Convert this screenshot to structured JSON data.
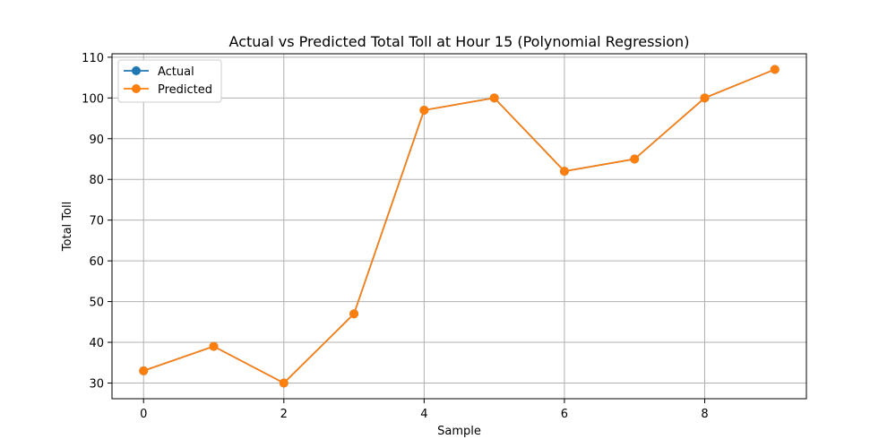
{
  "chart_data": {
    "type": "line",
    "title": "Actual vs Predicted Total Toll at Hour 15 (Polynomial Regression)",
    "xlabel": "Sample",
    "ylabel": "Total Toll",
    "x": [
      0,
      1,
      2,
      3,
      4,
      5,
      6,
      7,
      8,
      9
    ],
    "xlim": [
      -0.45,
      9.45
    ],
    "ylim": [
      26.15,
      110.85
    ],
    "xticks": [
      0,
      2,
      4,
      6,
      8
    ],
    "yticks": [
      30,
      40,
      50,
      60,
      70,
      80,
      90,
      100,
      110
    ],
    "grid": true,
    "legend_position": "top-left",
    "series": [
      {
        "name": "Actual",
        "color": "#1f77b4",
        "marker": "circle",
        "values": [
          33,
          39,
          30,
          47,
          97,
          100,
          82,
          85,
          100,
          107
        ]
      },
      {
        "name": "Predicted",
        "color": "#ff7f0e",
        "marker": "circle",
        "values": [
          33,
          39,
          30,
          47,
          97,
          100,
          82,
          85,
          100,
          107
        ]
      }
    ]
  }
}
